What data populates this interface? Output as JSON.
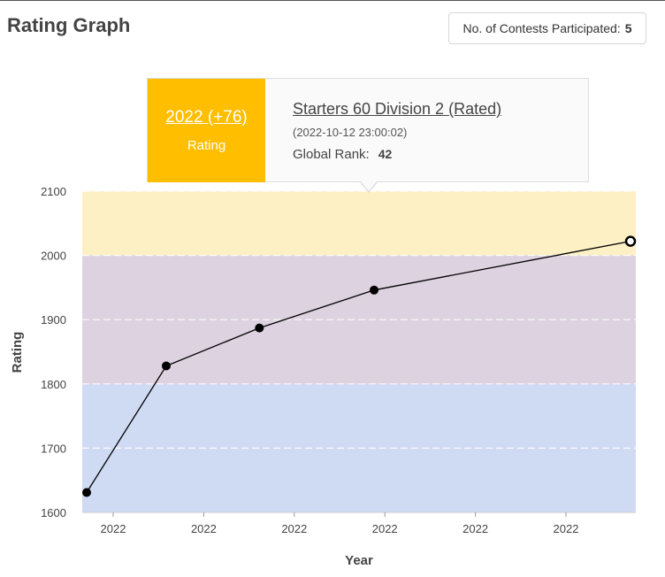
{
  "header": {
    "title": "Rating Graph",
    "contests_label": "No. of Contests Participated:",
    "contests_count": "5"
  },
  "tooltip": {
    "rating_value": "2022 (+76)",
    "rating_label": "Rating",
    "contest_name": "Starters 60 Division 2 (Rated)",
    "date": "(2022-10-12 23:00:02)",
    "rank_label": "Global Rank:",
    "rank_value": "42",
    "accent_color": "#ffbe00"
  },
  "chart_data": {
    "type": "line",
    "xlabel": "Year",
    "ylabel": "Rating",
    "ylim": [
      1600,
      2100
    ],
    "yticks": [
      1600,
      1700,
      1800,
      1900,
      2000,
      2100
    ],
    "xtick_labels": [
      "2022",
      "2022",
      "2022",
      "2022",
      "2022",
      "2022"
    ],
    "bands": [
      {
        "from": 1600,
        "to": 1800,
        "color": "#cfdaf3"
      },
      {
        "from": 1800,
        "to": 2000,
        "color": "#dcd2e0"
      },
      {
        "from": 2000,
        "to": 2100,
        "color": "#fdf0c4"
      }
    ],
    "series": [
      {
        "values": [
          1631,
          1828,
          1887,
          1946,
          2022
        ],
        "highlighted_index": 4
      }
    ],
    "grid": true,
    "line_color": "#000000"
  }
}
